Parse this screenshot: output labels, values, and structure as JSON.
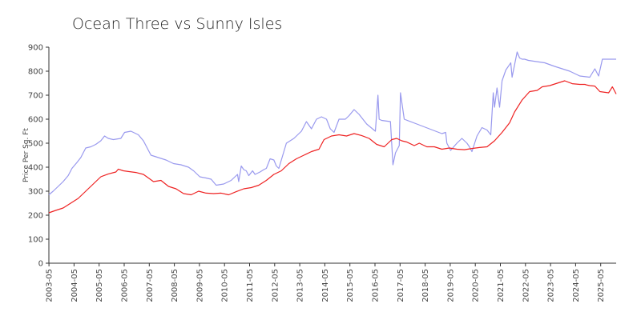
{
  "chart_data": {
    "type": "line",
    "title": "Ocean Three vs Sunny Isles",
    "xlabel": "",
    "ylabel": "Price Per Sq. Ft",
    "ylim": [
      0,
      900
    ],
    "yticks": [
      0,
      100,
      200,
      300,
      400,
      500,
      600,
      700,
      800,
      900
    ],
    "xlim": [
      2003.33,
      2025.95
    ],
    "xtick_labels": [
      "2003-05",
      "2004-05",
      "2005-05",
      "2006-05",
      "2007-05",
      "2008-05",
      "2009-05",
      "2010-05",
      "2011-05",
      "2012-05",
      "2013-05",
      "2014-05",
      "2015-05",
      "2016-05",
      "2017-05",
      "2018-05",
      "2019-05",
      "2020-05",
      "2021-05",
      "2022-05",
      "2023-05",
      "2024-05",
      "2025-05"
    ],
    "series": [
      {
        "name": "Ocean Three",
        "color": "#9999ee",
        "x": [
          2003.33,
          2003.5,
          2003.7,
          2003.9,
          2004.1,
          2004.25,
          2004.45,
          2004.6,
          2004.8,
          2005.0,
          2005.2,
          2005.4,
          2005.55,
          2005.7,
          2005.9,
          2006.2,
          2006.35,
          2006.6,
          2006.9,
          2007.1,
          2007.4,
          2007.7,
          2008.0,
          2008.3,
          2008.6,
          2008.9,
          2009.1,
          2009.35,
          2009.6,
          2009.8,
          2010.0,
          2010.3,
          2010.6,
          2010.85,
          2010.9,
          2011.0,
          2011.1,
          2011.2,
          2011.3,
          2011.45,
          2011.55,
          2011.75,
          2011.9,
          2012.0,
          2012.15,
          2012.3,
          2012.4,
          2012.5,
          2012.8,
          2013.1,
          2013.4,
          2013.6,
          2013.8,
          2014.0,
          2014.2,
          2014.4,
          2014.55,
          2014.7,
          2014.9,
          2015.0,
          2015.15,
          2015.3,
          2015.5,
          2015.7,
          2016.0,
          2016.35,
          2016.45,
          2016.5,
          2016.6,
          2016.95,
          2017.05,
          2017.15,
          2017.3,
          2017.35,
          2017.5,
          2018.0,
          2018.5,
          2019.0,
          2019.15,
          2019.2,
          2019.35,
          2019.6,
          2019.8,
          2020.0,
          2020.1,
          2020.2,
          2020.4,
          2020.6,
          2020.8,
          2020.95,
          2021.05,
          2021.1,
          2021.2,
          2021.3,
          2021.4,
          2021.55,
          2021.75,
          2021.8,
          2022.0,
          2022.1,
          2022.2,
          2022.3,
          2022.45,
          2023.1,
          2023.5,
          2024.1,
          2024.5,
          2024.9,
          2025.1,
          2025.25,
          2025.4,
          2025.6,
          2025.75,
          2025.95
        ],
        "values": [
          285,
          300,
          320,
          340,
          365,
          395,
          420,
          440,
          480,
          485,
          495,
          510,
          530,
          520,
          515,
          520,
          545,
          550,
          535,
          510,
          450,
          440,
          430,
          415,
          410,
          400,
          385,
          360,
          355,
          350,
          325,
          330,
          345,
          370,
          340,
          405,
          390,
          385,
          365,
          385,
          370,
          380,
          390,
          395,
          435,
          430,
          405,
          395,
          500,
          520,
          550,
          590,
          560,
          600,
          610,
          600,
          560,
          545,
          600,
          600,
          600,
          615,
          640,
          620,
          580,
          550,
          700,
          600,
          595,
          590,
          410,
          460,
          490,
          710,
          600,
          580,
          560,
          540,
          545,
          500,
          470,
          500,
          520,
          500,
          485,
          465,
          530,
          565,
          555,
          535,
          710,
          650,
          730,
          650,
          760,
          805,
          835,
          775,
          880,
          855,
          850,
          850,
          845,
          835,
          820,
          800,
          780,
          775,
          810,
          780,
          850,
          850,
          850,
          850
        ]
      },
      {
        "name": "Sunny Isles",
        "color": "#ee2222",
        "x": [
          2003.33,
          2003.6,
          2003.9,
          2004.2,
          2004.5,
          2004.8,
          2005.1,
          2005.4,
          2005.7,
          2006.0,
          2006.1,
          2006.3,
          2006.5,
          2006.8,
          2007.1,
          2007.3,
          2007.5,
          2007.8,
          2008.1,
          2008.4,
          2008.7,
          2009.0,
          2009.3,
          2009.6,
          2009.9,
          2010.2,
          2010.5,
          2010.8,
          2011.1,
          2011.4,
          2011.7,
          2012.0,
          2012.3,
          2012.6,
          2012.9,
          2013.2,
          2013.5,
          2013.8,
          2014.1,
          2014.3,
          2014.6,
          2014.9,
          2015.2,
          2015.5,
          2015.8,
          2016.1,
          2016.4,
          2016.7,
          2017.0,
          2017.2,
          2017.4,
          2017.6,
          2017.9,
          2018.1,
          2018.4,
          2018.7,
          2019.0,
          2019.3,
          2019.6,
          2019.9,
          2020.2,
          2020.5,
          2020.8,
          2021.1,
          2021.4,
          2021.7,
          2021.9,
          2022.2,
          2022.5,
          2022.8,
          2023.0,
          2023.3,
          2023.6,
          2023.9,
          2024.2,
          2024.5,
          2024.7,
          2024.8,
          2024.9,
          2025.1,
          2025.3,
          2025.5,
          2025.65,
          2025.8,
          2025.95
        ],
        "values": [
          210,
          220,
          230,
          250,
          270,
          300,
          330,
          360,
          372,
          380,
          392,
          385,
          382,
          378,
          370,
          355,
          340,
          345,
          320,
          310,
          290,
          285,
          300,
          292,
          290,
          292,
          285,
          298,
          310,
          315,
          325,
          345,
          370,
          385,
          415,
          435,
          450,
          465,
          475,
          515,
          530,
          535,
          530,
          540,
          532,
          520,
          495,
          485,
          515,
          520,
          510,
          505,
          490,
          500,
          485,
          485,
          475,
          480,
          475,
          473,
          478,
          482,
          485,
          510,
          545,
          585,
          630,
          680,
          715,
          720,
          735,
          740,
          750,
          760,
          748,
          745,
          745,
          742,
          740,
          738,
          715,
          712,
          710,
          735,
          705
        ]
      }
    ]
  }
}
